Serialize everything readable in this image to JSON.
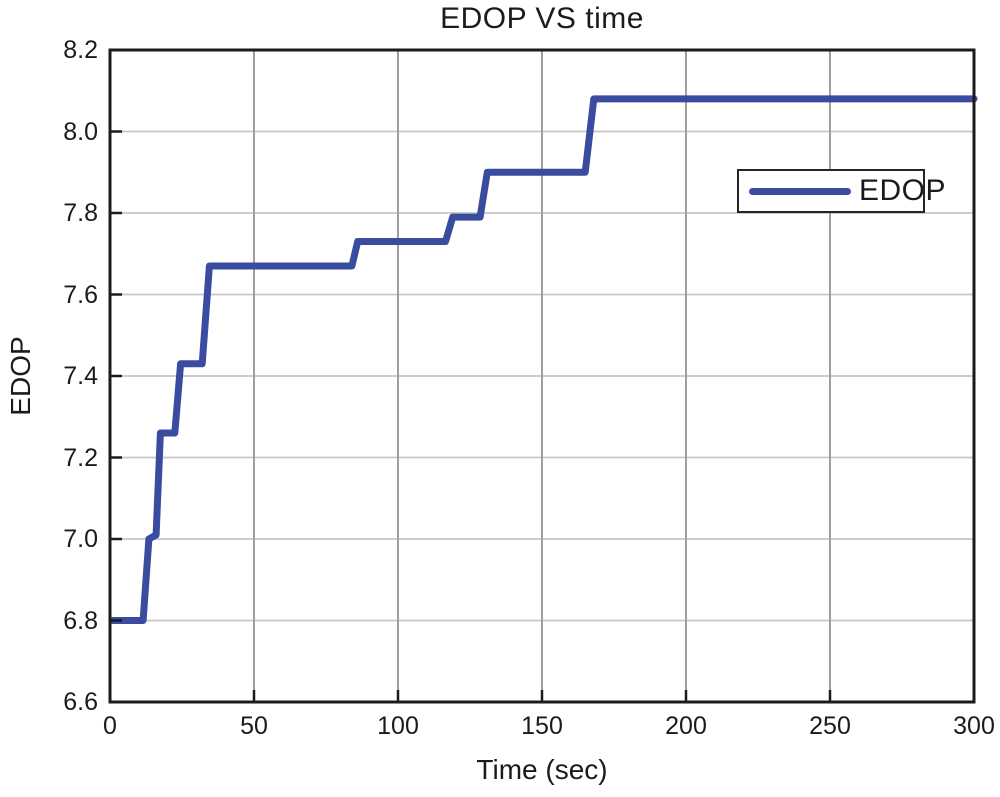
{
  "figure": {
    "title": "EDOP VS time"
  },
  "axes": {
    "x": {
      "label": "Time (sec)",
      "tick_labels": [
        "0",
        "50",
        "100",
        "150",
        "200",
        "250",
        "300"
      ]
    },
    "y": {
      "label": "EDOP",
      "tick_labels": [
        "6.6",
        "6.8",
        "7.0",
        "7.2",
        "7.4",
        "7.6",
        "7.8",
        "8.0",
        "8.2"
      ]
    }
  },
  "legend": {
    "label": "EDOP"
  },
  "colors": {
    "line": "#3A4CA0",
    "grid_vertical": "#9e9e9e",
    "grid_horizontal": "#c6c6c6",
    "axis": "#1b1b1b",
    "text": "#1b1b1b",
    "background": "#ffffff",
    "legend_border": "#262626"
  },
  "chart_data": {
    "type": "line",
    "title": "EDOP VS time",
    "xlabel": "Time (sec)",
    "ylabel": "EDOP",
    "xlim": [
      0,
      300
    ],
    "ylim": [
      6.6,
      8.2
    ],
    "x_ticks": [
      0,
      50,
      100,
      150,
      200,
      250,
      300
    ],
    "y_ticks": [
      6.6,
      6.8,
      7.0,
      7.2,
      7.4,
      7.6,
      7.8,
      8.0,
      8.2
    ],
    "grid": true,
    "legend_position": "upper-right-inside",
    "series": [
      {
        "name": "EDOP",
        "color": "#3A4CA0",
        "line_width": 7,
        "points": [
          [
            1,
            6.8
          ],
          [
            11.5,
            6.8
          ],
          [
            13.5,
            7.0
          ],
          [
            16,
            7.01
          ],
          [
            17.5,
            7.26
          ],
          [
            22.5,
            7.26
          ],
          [
            24.5,
            7.43
          ],
          [
            32,
            7.43
          ],
          [
            34.5,
            7.67
          ],
          [
            84,
            7.67
          ],
          [
            86,
            7.73
          ],
          [
            116.5,
            7.73
          ],
          [
            119,
            7.79
          ],
          [
            128.5,
            7.79
          ],
          [
            131,
            7.9
          ],
          [
            165,
            7.9
          ],
          [
            168,
            8.08
          ],
          [
            300,
            8.08
          ]
        ]
      }
    ]
  }
}
